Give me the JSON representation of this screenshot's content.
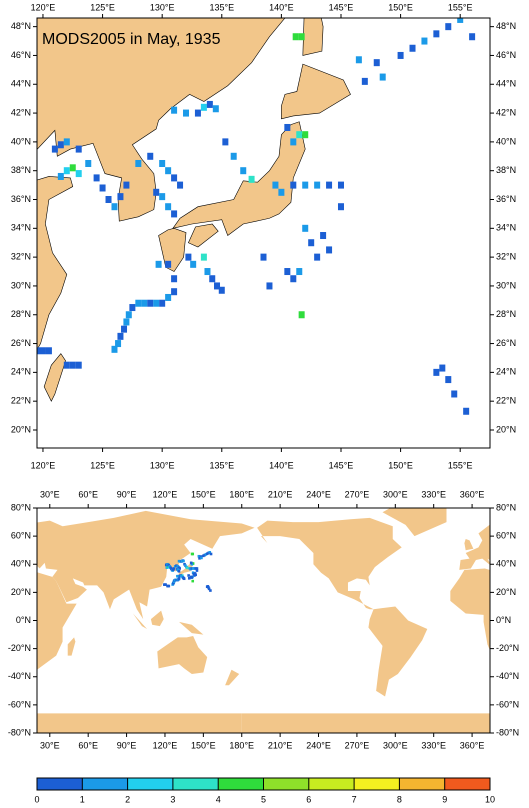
{
  "top_map": {
    "title": "MODS2005 in May, 1935",
    "xlim": [
      119.5,
      157.5
    ],
    "ylim": [
      18.75,
      48.6
    ],
    "xticks": [
      {
        "value": 120,
        "label": "120°E"
      },
      {
        "value": 125,
        "label": "125°E"
      },
      {
        "value": 130,
        "label": "130°E"
      },
      {
        "value": 135,
        "label": "135°E"
      },
      {
        "value": 140,
        "label": "140°E"
      },
      {
        "value": 145,
        "label": "145°E"
      },
      {
        "value": 150,
        "label": "150°E"
      },
      {
        "value": 155,
        "label": "155°E"
      }
    ],
    "yticks": [
      {
        "value": 20,
        "label": "20°N"
      },
      {
        "value": 22,
        "label": "22°N"
      },
      {
        "value": 24,
        "label": "24°N"
      },
      {
        "value": 26,
        "label": "26°N"
      },
      {
        "value": 28,
        "label": "28°N"
      },
      {
        "value": 30,
        "label": "30°N"
      },
      {
        "value": 32,
        "label": "32°N"
      },
      {
        "value": 34,
        "label": "34°N"
      },
      {
        "value": 36,
        "label": "36°N"
      },
      {
        "value": 38,
        "label": "38°N"
      },
      {
        "value": 40,
        "label": "40°N"
      },
      {
        "value": 42,
        "label": "42°N"
      },
      {
        "value": 44,
        "label": "44°N"
      },
      {
        "value": 46,
        "label": "46°N"
      },
      {
        "value": 48,
        "label": "48°N"
      }
    ]
  },
  "world_map": {
    "xlim": [
      20,
      374
    ],
    "ylim": [
      -80,
      80
    ],
    "xticks": [
      {
        "value": 30,
        "label": "30°E"
      },
      {
        "value": 60,
        "label": "60°E"
      },
      {
        "value": 90,
        "label": "90°E"
      },
      {
        "value": 120,
        "label": "120°E"
      },
      {
        "value": 150,
        "label": "150°E"
      },
      {
        "value": 180,
        "label": "180°E"
      },
      {
        "value": 210,
        "label": "210°E"
      },
      {
        "value": 240,
        "label": "240°E"
      },
      {
        "value": 270,
        "label": "270°E"
      },
      {
        "value": 300,
        "label": "300°E"
      },
      {
        "value": 330,
        "label": "330°E"
      },
      {
        "value": 360,
        "label": "360°E"
      }
    ],
    "yticks": [
      {
        "value": -80,
        "label": "-80°N"
      },
      {
        "value": -60,
        "label": "-60°N"
      },
      {
        "value": -40,
        "label": "-40°N"
      },
      {
        "value": -20,
        "label": "-20°N"
      },
      {
        "value": 0,
        "label": "0°N"
      },
      {
        "value": 20,
        "label": "20°N"
      },
      {
        "value": 40,
        "label": "40°N"
      },
      {
        "value": 60,
        "label": "60°N"
      },
      {
        "value": 80,
        "label": "80°N"
      }
    ]
  },
  "colorbar": {
    "ticks": [
      0,
      1,
      2,
      3,
      4,
      5,
      6,
      7,
      8,
      9,
      10
    ],
    "colors": [
      "#1c5fd4",
      "#1b9ae8",
      "#22cfee",
      "#2ee2c8",
      "#2fdc3c",
      "#8ee02a",
      "#c8ec20",
      "#f4f020",
      "#f4b530",
      "#f05a1e"
    ]
  },
  "observations": {
    "lon": [
      119.5,
      120,
      120.5,
      122,
      122.5,
      123,
      126,
      126.3,
      126.5,
      126.8,
      127,
      127.2,
      127.5,
      128,
      128.5,
      129,
      129.5,
      130,
      130.5,
      131,
      131,
      130.5,
      129.7,
      121.5,
      122,
      122.5,
      123,
      121,
      121.5,
      122,
      123,
      123.8,
      124.5,
      125,
      125.5,
      126,
      126.5,
      127,
      128,
      129,
      130,
      130.5,
      131,
      131.5,
      129.5,
      130,
      131,
      132,
      133,
      133.5,
      134,
      134.5,
      130.5,
      131,
      133.5,
      133.8,
      134.2,
      134.6,
      135,
      132.2,
      132.6,
      135.3,
      136,
      136.8,
      137.5,
      139.5,
      140,
      141,
      142,
      143,
      144,
      145,
      145,
      141.5,
      142,
      141,
      140.5,
      142,
      142.5,
      143,
      141.5,
      141,
      140.5,
      139,
      138.5,
      144,
      143.5,
      141.7,
      141.2,
      141.7,
      146.5,
      147,
      148,
      148.5,
      150,
      151,
      152,
      153,
      154,
      155,
      156,
      153,
      153.5,
      154,
      154.5,
      155.5
    ],
    "lat": [
      25.5,
      25.5,
      25.5,
      24.5,
      24.5,
      24.5,
      25.6,
      26,
      26.5,
      27,
      27.5,
      28,
      28.5,
      28.8,
      28.8,
      28.8,
      28.8,
      28.8,
      29.2,
      29.6,
      30.5,
      31.5,
      31.5,
      37.6,
      38,
      38.2,
      37.8,
      39.5,
      39.8,
      40,
      39.5,
      38.5,
      37.5,
      36.8,
      36,
      35.5,
      36.2,
      37,
      38.5,
      39,
      38.5,
      38,
      37.5,
      37,
      36.5,
      36.2,
      42.2,
      42,
      42,
      42.4,
      42.6,
      42.3,
      35.5,
      35,
      32,
      31,
      30.5,
      30,
      29.7,
      32,
      31.5,
      40,
      39,
      38,
      37.4,
      37,
      36.5,
      37,
      37,
      37,
      37,
      37,
      35.5,
      40.5,
      40.5,
      40,
      41,
      34,
      33,
      32,
      31,
      30.5,
      31,
      30,
      32,
      32.5,
      33.5,
      28,
      47.3,
      47.3,
      45.7,
      44.2,
      45.5,
      44.5,
      46,
      46.5,
      47,
      47.5,
      48,
      48.5,
      47.3,
      24,
      24.3,
      23.5,
      22.5,
      21.3
    ],
    "values": [
      1,
      1,
      1,
      1,
      1,
      1,
      2,
      2,
      1,
      1,
      2,
      2,
      1,
      2,
      2,
      1,
      2,
      1,
      2,
      1,
      1,
      1,
      2,
      2,
      3,
      5,
      3,
      1,
      1,
      2,
      1,
      2,
      1,
      1,
      1,
      2,
      1,
      1,
      2,
      1,
      2,
      2,
      1,
      1,
      1,
      2,
      2,
      2,
      1,
      3,
      1,
      2,
      2,
      1,
      4,
      2,
      1,
      1,
      1,
      1,
      2,
      1,
      2,
      2,
      4,
      2,
      2,
      1,
      2,
      2,
      1,
      1,
      1,
      4,
      5,
      2,
      1,
      2,
      1,
      1,
      2,
      1,
      1,
      1,
      1,
      1,
      1,
      5,
      5,
      5,
      2,
      1,
      1,
      2,
      1,
      1,
      2,
      1,
      1,
      2,
      1,
      1,
      1,
      1,
      1,
      1
    ]
  }
}
